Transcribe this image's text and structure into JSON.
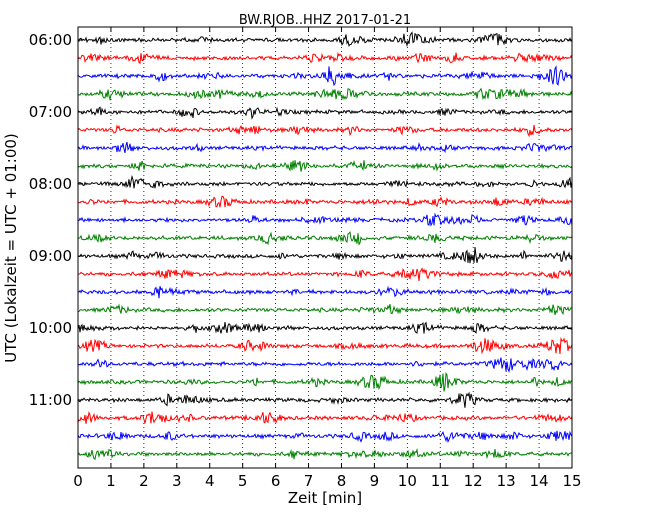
{
  "chart_data": {
    "type": "line",
    "title": "BW.RJOB..HHZ 2017-01-21",
    "xlabel": "Zeit  [min]",
    "ylabel": "UTC (Lokalzeit = UTC + 01:00)",
    "xlim": [
      0,
      15
    ],
    "x_ticks": [
      "0",
      "1",
      "2",
      "3",
      "4",
      "5",
      "6",
      "7",
      "8",
      "9",
      "10",
      "11",
      "12",
      "13",
      "14",
      "15"
    ],
    "y_tick_labels": [
      "06:00",
      "07:00",
      "08:00",
      "09:00",
      "10:00",
      "11:00"
    ],
    "traces_per_hour": 4,
    "trace_start_times": [
      "06:00",
      "06:15",
      "06:30",
      "06:45",
      "07:00",
      "07:15",
      "07:30",
      "07:45",
      "08:00",
      "08:15",
      "08:30",
      "08:45",
      "09:00",
      "09:15",
      "09:30",
      "09:45",
      "10:00",
      "10:15",
      "10:30",
      "10:45",
      "11:00",
      "11:15",
      "11:30",
      "11:45"
    ],
    "series_colors": [
      "#000000",
      "#ff0000",
      "#0000ff",
      "#008000"
    ],
    "grid": "vertical dotted"
  }
}
